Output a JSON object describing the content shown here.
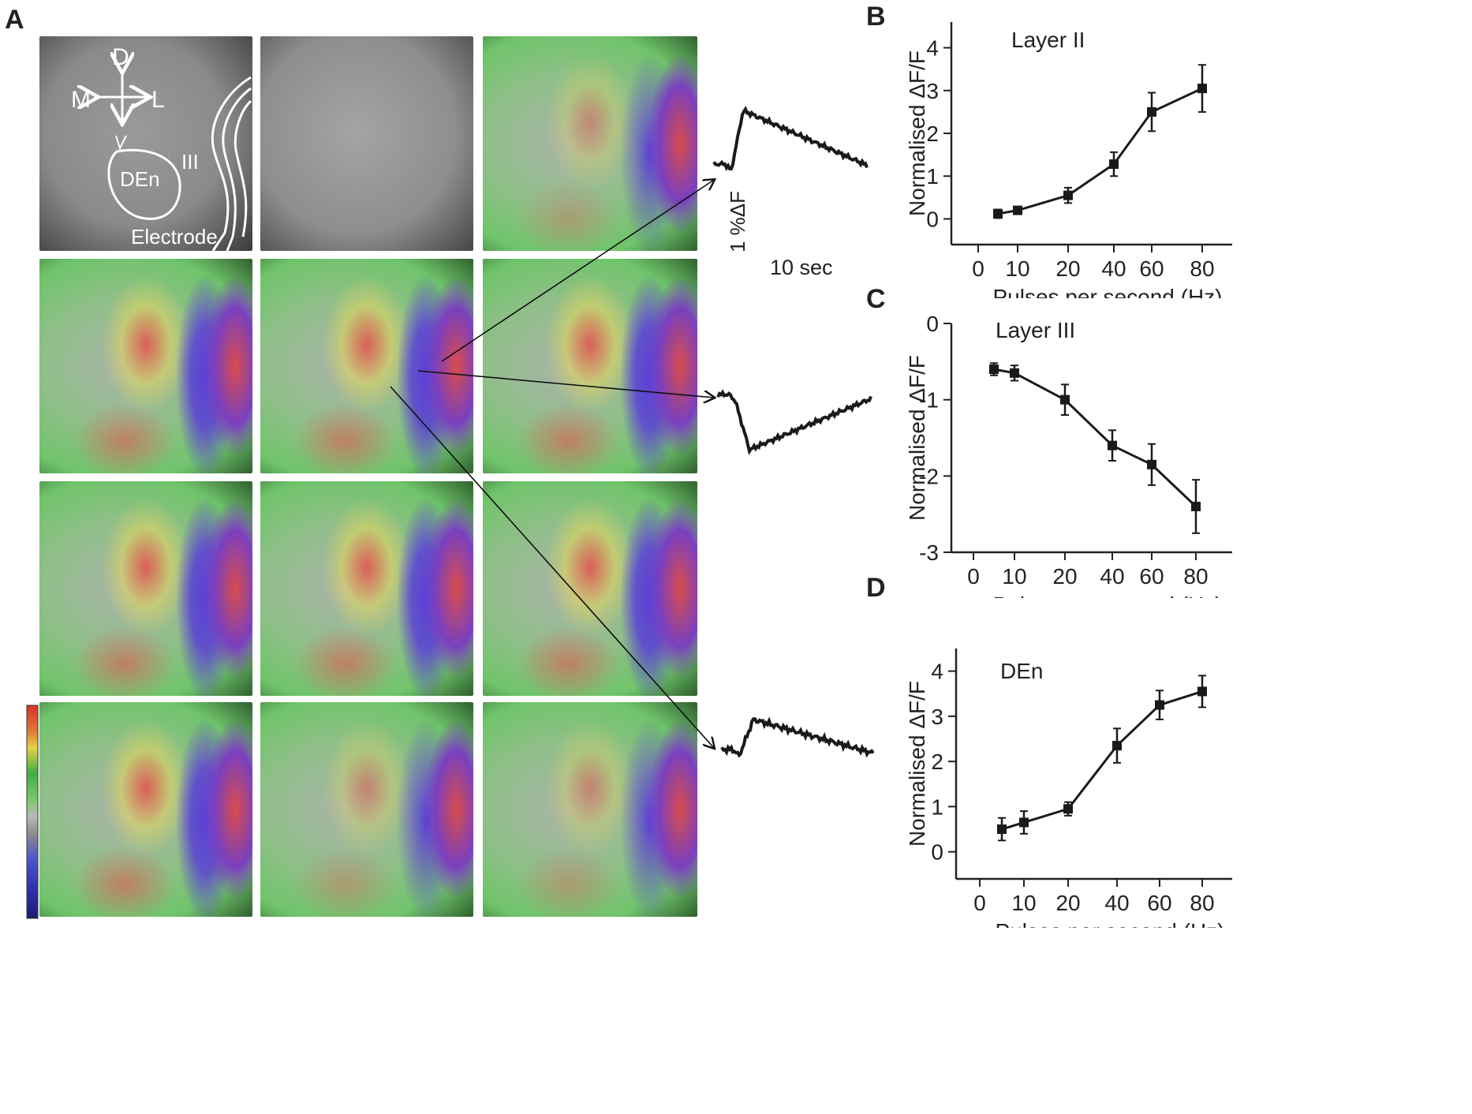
{
  "panel_labels": {
    "a": "A",
    "b": "B",
    "c": "C",
    "d": "D"
  },
  "panel_a": {
    "orientation": {
      "dorsal": "D",
      "medial": "M",
      "lateral": "L"
    },
    "region_labels": {
      "den": "DEn",
      "layer": "III",
      "electrode": "Electrode"
    },
    "scale_bar": {
      "amplitude": "1 %ΔF",
      "time": "10 sec"
    },
    "colors": {
      "gray_bg": "#8a8a8a",
      "green": "#6fc46a",
      "red": "#e0564f",
      "blue": "#5a3fd6",
      "yellow": "#e5d95a"
    }
  },
  "chart_data": [
    {
      "panel": "B",
      "type": "line",
      "title": "Layer II",
      "xlabel": "Pulses per second (Hz)",
      "ylabel": "Normalised ΔF/F",
      "x": [
        "5",
        "10",
        "20",
        "40",
        "60",
        "80"
      ],
      "x_tick_labels": [
        "0",
        "10",
        "20",
        "40",
        "60",
        "80"
      ],
      "y": [
        0.12,
        0.2,
        0.55,
        1.28,
        2.5,
        3.05
      ],
      "error": [
        0.1,
        0.08,
        0.18,
        0.28,
        0.45,
        0.55
      ],
      "y_tick_labels": [
        "0",
        "1",
        "2",
        "3",
        "4"
      ],
      "y_ticks": [
        0,
        1,
        2,
        3,
        4
      ],
      "ylim": [
        -0.6,
        4.6
      ]
    },
    {
      "panel": "C",
      "type": "line",
      "title": "Layer III",
      "xlabel": "Pulses per second (Hz)",
      "ylabel": "Normalised ΔF/F",
      "x": [
        "5",
        "10",
        "20",
        "40",
        "60",
        "80"
      ],
      "x_tick_labels": [
        "0",
        "10",
        "20",
        "40",
        "60",
        "80"
      ],
      "y": [
        -0.6,
        -0.65,
        -1.0,
        -1.6,
        -1.85,
        -2.4
      ],
      "error": [
        0.08,
        0.1,
        0.2,
        0.2,
        0.27,
        0.35
      ],
      "y_tick_labels": [
        "0",
        "-1",
        "-2",
        "-3"
      ],
      "y_ticks": [
        0,
        -1,
        -2,
        -3
      ],
      "ylim": [
        -3,
        0
      ]
    },
    {
      "panel": "D",
      "type": "line",
      "title": "DEn",
      "xlabel": "Pulses per second (Hz)",
      "ylabel": "Normalised ΔF/F",
      "x": [
        "5",
        "10",
        "20",
        "40",
        "60",
        "80"
      ],
      "x_tick_labels": [
        "0",
        "10",
        "20",
        "40",
        "60",
        "80"
      ],
      "y": [
        0.5,
        0.65,
        0.95,
        2.35,
        3.25,
        3.55
      ],
      "error": [
        0.25,
        0.25,
        0.15,
        0.38,
        0.32,
        0.35
      ],
      "y_tick_labels": [
        "0",
        "1",
        "2",
        "3",
        "4"
      ],
      "y_ticks": [
        0,
        1,
        2,
        3,
        4
      ],
      "ylim": [
        -0.6,
        4.5
      ]
    }
  ]
}
